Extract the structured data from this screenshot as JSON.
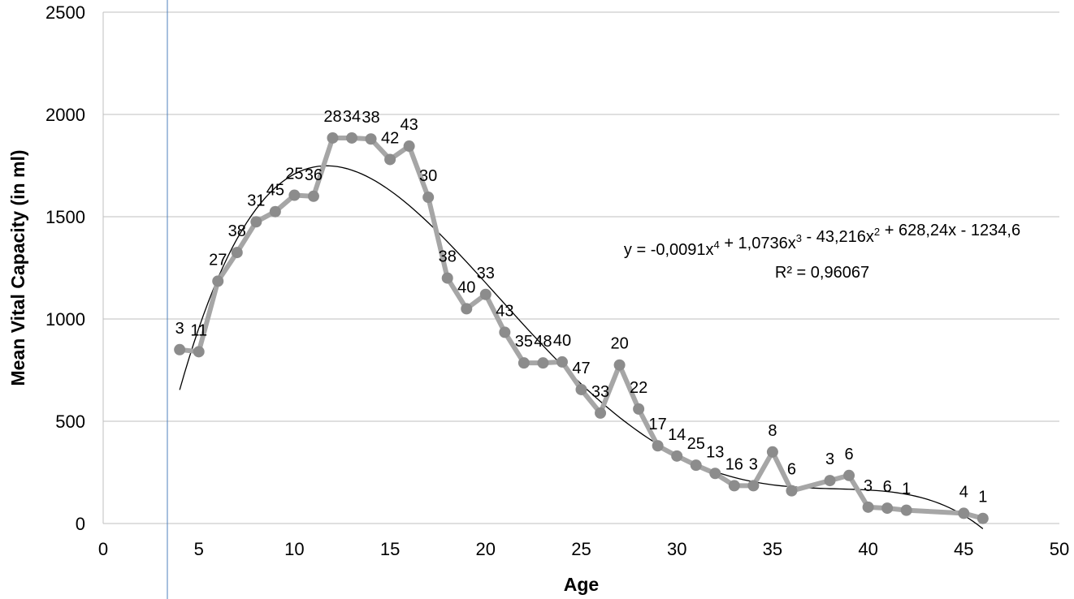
{
  "chart_data": {
    "type": "line",
    "title": "",
    "xlabel": "Age",
    "ylabel": "Mean Vital Capacity (in ml)",
    "xlim": [
      0,
      50
    ],
    "ylim": [
      0,
      2500
    ],
    "x_ticks": [
      "0",
      "5",
      "10",
      "15",
      "20",
      "25",
      "30",
      "35",
      "40",
      "45",
      "50"
    ],
    "y_ticks": [
      "0",
      "500",
      "1000",
      "1500",
      "2000",
      "2500"
    ],
    "grid": "horizontal",
    "legend": "none",
    "series": [
      {
        "x": [
          4,
          5,
          6,
          7,
          8,
          9,
          10,
          11,
          12,
          13,
          14,
          15,
          16,
          17,
          18,
          19,
          20,
          21,
          22,
          23,
          24,
          25,
          26,
          27,
          28,
          29,
          30,
          31,
          32,
          33,
          34,
          35,
          36,
          38,
          39,
          40,
          41,
          42,
          45,
          46
        ],
        "y": [
          850,
          840,
          1185,
          1325,
          1475,
          1525,
          1605,
          1600,
          1885,
          1885,
          1880,
          1780,
          1845,
          1595,
          1200,
          1050,
          1120,
          935,
          785,
          785,
          790,
          655,
          540,
          775,
          560,
          380,
          330,
          285,
          245,
          185,
          185,
          350,
          160,
          210,
          235,
          80,
          75,
          65,
          50,
          25
        ],
        "labels": [
          "3",
          "11",
          "27",
          "38",
          "31",
          "45",
          "25",
          "36",
          "28",
          "34",
          "38",
          "42",
          "43",
          "30",
          "38",
          "40",
          "33",
          "43",
          "35",
          "48",
          "40",
          "47",
          "33",
          "20",
          "22",
          "17",
          "14",
          "25",
          "13",
          "16",
          "3",
          "8",
          "6",
          "3",
          "6",
          "3",
          "6",
          "1",
          "4",
          "1"
        ],
        "color": "#a6a6a6"
      }
    ],
    "trendline": {
      "type": "polynomial",
      "order": 4,
      "coefficients": [
        -0.0091,
        1.0736,
        -43.216,
        628.24,
        -1234.6
      ],
      "x_range": [
        4,
        46
      ],
      "equation_label": "y = -0,0091x4 + 1,0736x3 - 43,216x2 + 628,24x - 1234,6",
      "r2_label": "R² = 0,96067",
      "color": "#000000"
    },
    "reference_line_color": "#4f81bd"
  }
}
